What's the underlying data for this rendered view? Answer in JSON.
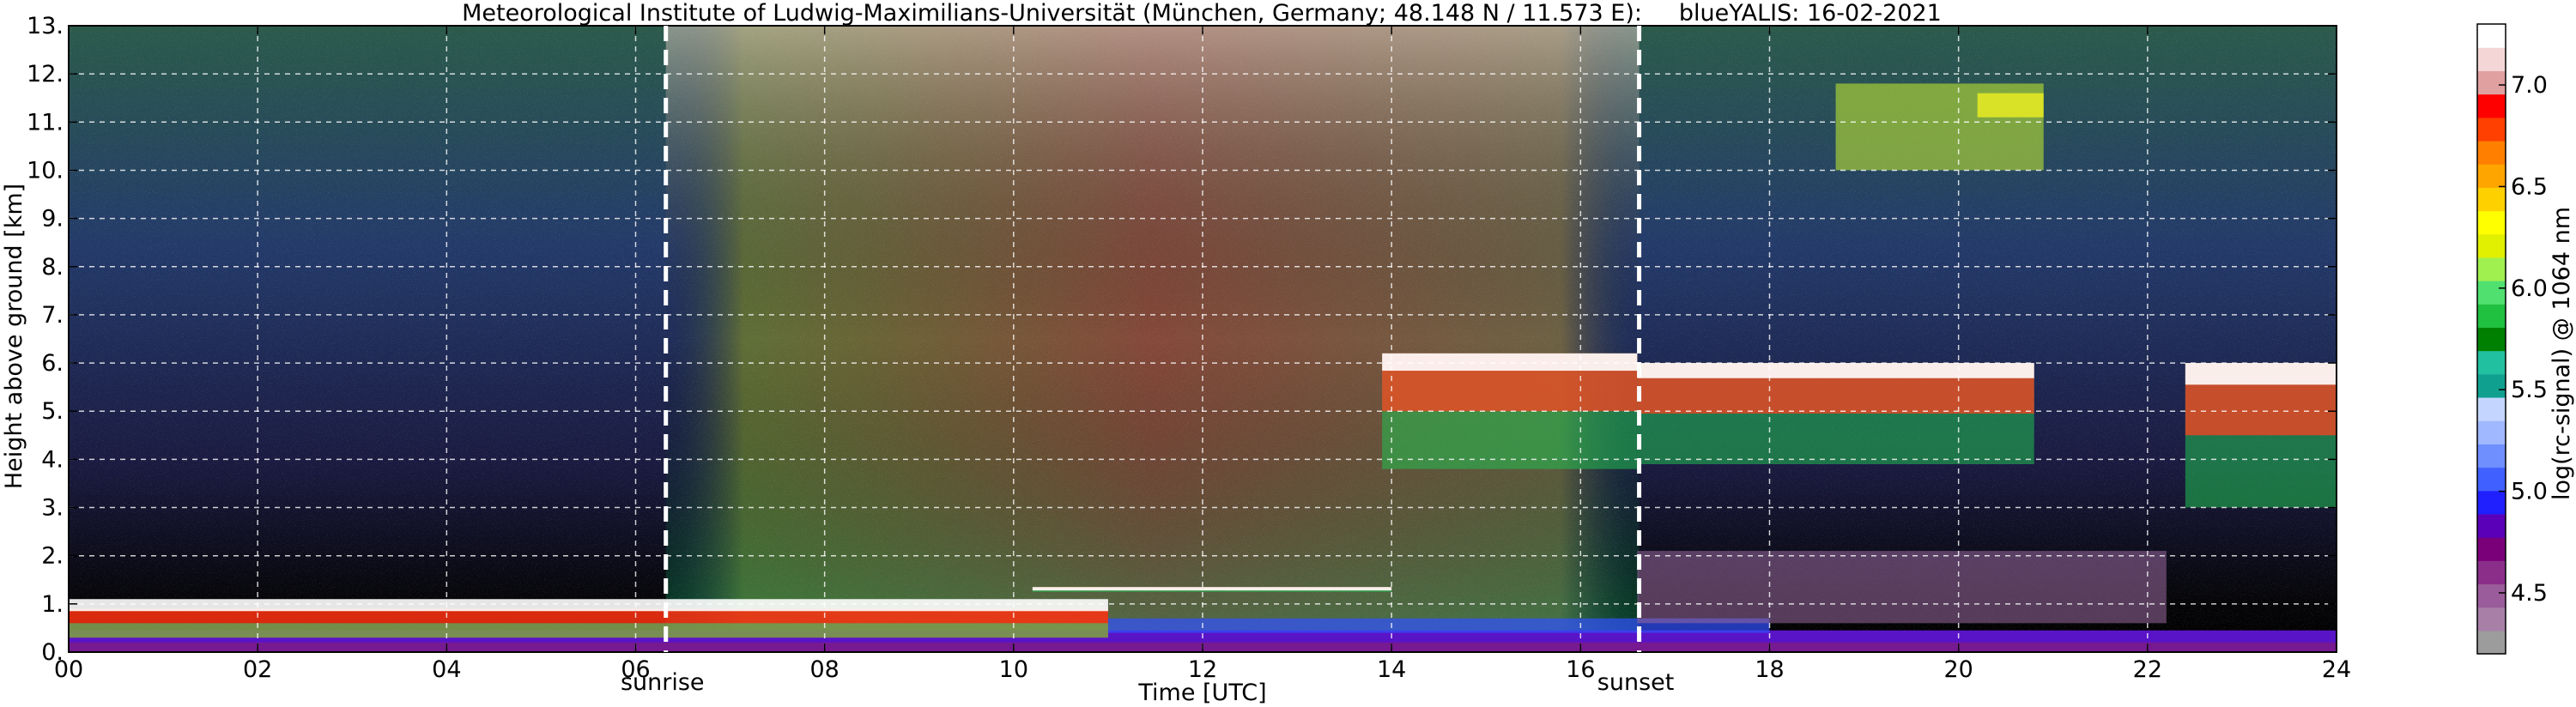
{
  "chart_data": {
    "type": "heatmap",
    "title": "Meteorological Institute of Ludwig-Maximilians-Universität (München, Germany; 48.148 N / 11.573 E):     blueYALIS: 16-02-2021",
    "xlabel": "Time [UTC]",
    "ylabel": "Height above ground [km]",
    "xlim": [
      0,
      24
    ],
    "ylim": [
      0,
      13
    ],
    "x_ticks": [
      0,
      2,
      4,
      6,
      8,
      10,
      12,
      14,
      16,
      18,
      20,
      22,
      24
    ],
    "x_tick_labels": [
      "00",
      "02",
      "04",
      "06",
      "08",
      "10",
      "12",
      "14",
      "16",
      "18",
      "20",
      "22",
      "24"
    ],
    "y_ticks": [
      0,
      1,
      2,
      3,
      4,
      5,
      6,
      7,
      8,
      9,
      10,
      11,
      12,
      13
    ],
    "y_tick_labels": [
      "0.",
      "1.",
      "2.",
      "3.",
      "4.",
      "5.",
      "6.",
      "7.",
      "8.",
      "9.",
      "10.",
      "11.",
      "12.",
      "13."
    ],
    "grid": true,
    "events": [
      {
        "label": "sunrise",
        "time": 6.32
      },
      {
        "label": "sunset",
        "time": 16.62
      }
    ],
    "colorbar": {
      "label": "log(rc-signal) @ 1064 nm",
      "range": [
        4.2,
        7.3
      ],
      "ticks": [
        4.5,
        5.0,
        5.5,
        6.0,
        6.5,
        7.0
      ],
      "tick_labels": [
        "4.5",
        "5.0",
        "5.5",
        "6.0",
        "6.5",
        "7.0"
      ],
      "colors": [
        "#9c9c9c",
        "#a77fa7",
        "#9a5c9a",
        "#8a2e8a",
        "#7a007a",
        "#5a00b8",
        "#2020ff",
        "#4060ff",
        "#6f8fff",
        "#9fb8ff",
        "#c4d6ff",
        "#10a090",
        "#20c0a0",
        "#008000",
        "#20c040",
        "#50e070",
        "#a0f050",
        "#e0f000",
        "#ffff00",
        "#ffd000",
        "#ffa500",
        "#ff7f00",
        "#ff4000",
        "#ff0000",
        "#e0a0a0",
        "#f4d6d6",
        "#ffffff"
      ]
    },
    "features": [
      {
        "kind": "boundary_layer_aerosol",
        "t_start": 0,
        "t_end": 24,
        "top_km": 1.1
      },
      {
        "kind": "cloud",
        "t_start": 10.2,
        "t_end": 14.0,
        "base_km": 1.25,
        "top_km": 1.35
      },
      {
        "kind": "cloud",
        "t_start": 13.9,
        "t_end": 16.6,
        "base_km": 3.8,
        "top_km": 6.2
      },
      {
        "kind": "cloud",
        "t_start": 16.6,
        "t_end": 20.8,
        "base_km": 3.9,
        "top_km": 6.0
      },
      {
        "kind": "cirrus",
        "t_start": 18.7,
        "t_end": 20.9,
        "base_km": 10.0,
        "top_km": 11.8
      },
      {
        "kind": "cloud",
        "t_start": 22.4,
        "t_end": 24.0,
        "base_km": 3.0,
        "top_km": 6.0
      }
    ]
  }
}
